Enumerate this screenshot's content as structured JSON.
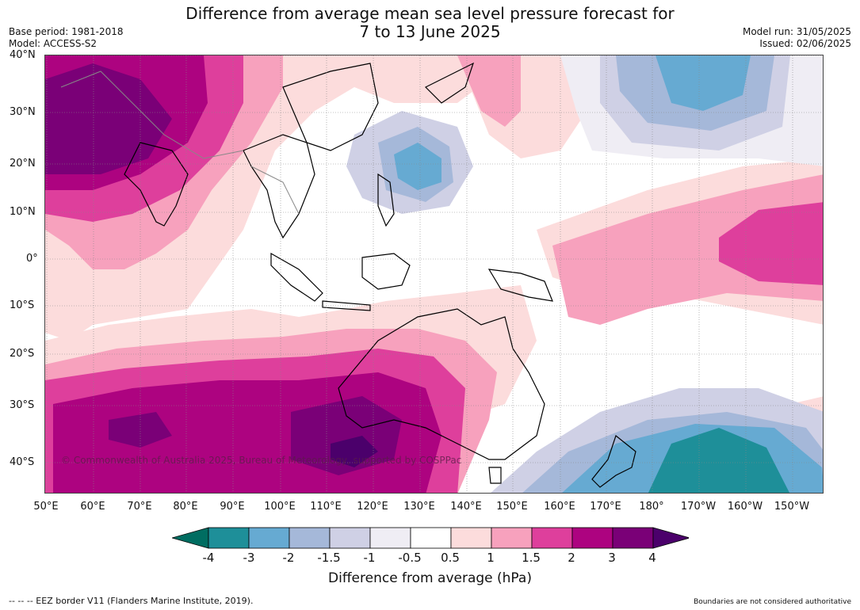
{
  "header": {
    "title_line1": "Difference from average mean sea level pressure forecast for",
    "title_line2": "7 to 13 June 2025",
    "base_period": "Base period: 1981-2018",
    "model": "Model: ACCESS-S2",
    "model_run": "Model run: 31/05/2025",
    "issued": "Issued: 02/06/2025"
  },
  "map": {
    "lat_labels": [
      "40°N",
      "30°N",
      "20°N",
      "10°N",
      "0°",
      "10°S",
      "20°S",
      "30°S",
      "40°S"
    ],
    "lon_labels": [
      "50°E",
      "60°E",
      "70°E",
      "80°E",
      "90°E",
      "100°E",
      "110°E",
      "120°E",
      "130°E",
      "140°E",
      "150°E",
      "160°E",
      "170°E",
      "180°",
      "170°W",
      "160°W",
      "150°W"
    ],
    "copyright": "© Commonwealth of Australia 2025, Bureau of Meteorology, supported by COSPPac"
  },
  "colorbar": {
    "title": "Difference from average (hPa)",
    "tick_labels": [
      "-4",
      "-3",
      "-2",
      "-1.5",
      "-1",
      "-0.5",
      "0.5",
      "1",
      "1.5",
      "2",
      "3",
      "4"
    ],
    "colors": [
      "#006d61",
      "#1e8f99",
      "#66aad2",
      "#a5b8d9",
      "#cfd0e5",
      "#efedf4",
      "#ffffff",
      "#fcdcdc",
      "#f7a1bd",
      "#de3f9c",
      "#ad0380",
      "#7a0077",
      "#4b006b"
    ]
  },
  "footer": {
    "eez_note": "--  --  -- EEZ border V11 (Flanders Marine Institute, 2019).",
    "boundary_note": "Boundaries are not considered authoritative"
  }
}
